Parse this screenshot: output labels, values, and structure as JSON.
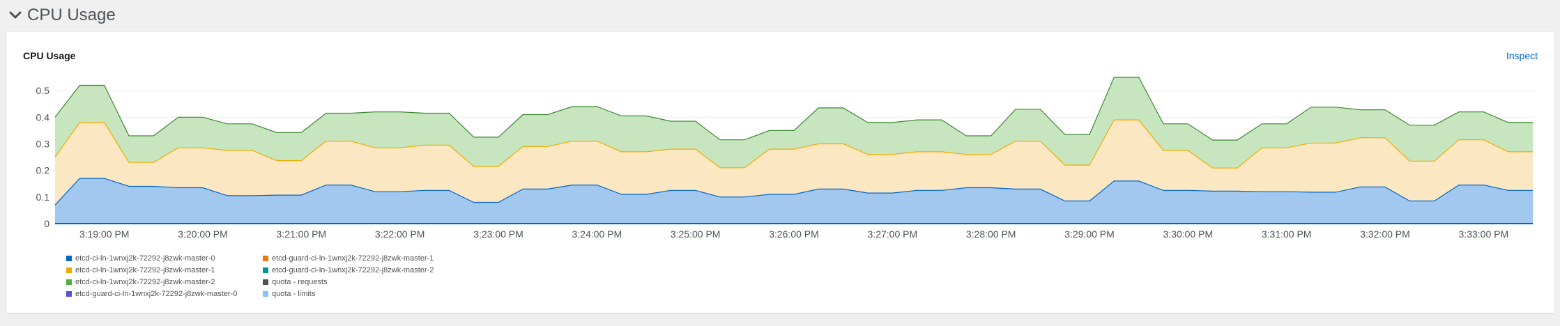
{
  "section": {
    "title": "CPU Usage",
    "chevron_icon": "chevron-down-icon"
  },
  "card": {
    "title": "CPU Usage",
    "inspect_label": "Inspect"
  },
  "colors": {
    "blue_fill": "#a2c8ef",
    "blue_line": "#0066cc",
    "yellow_fill": "#fbe7c2",
    "yellow_line": "#f0ab00",
    "green_fill": "#c7e6bf",
    "green_line": "#3e8635",
    "link": "#0066cc"
  },
  "legend": [
    {
      "label": "etcd-ci-ln-1wnxj2k-72292-j8zwk-master-0",
      "color": "#0066cc"
    },
    {
      "label": "etcd-guard-ci-ln-1wnxj2k-72292-j8zwk-master-1",
      "color": "#ec7a08"
    },
    {
      "label": "etcd-ci-ln-1wnxj2k-72292-j8zwk-master-1",
      "color": "#f0ab00"
    },
    {
      "label": "etcd-guard-ci-ln-1wnxj2k-72292-j8zwk-master-2",
      "color": "#009596"
    },
    {
      "label": "etcd-ci-ln-1wnxj2k-72292-j8zwk-master-2",
      "color": "#4cb140"
    },
    {
      "label": "quota - requests",
      "color": "#4f5255"
    },
    {
      "label": "etcd-guard-ci-ln-1wnxj2k-72292-j8zwk-master-0",
      "color": "#5752d1"
    },
    {
      "label": "quota - limits",
      "color": "#8bc1f7"
    }
  ],
  "chart_data": {
    "type": "area",
    "stacked": true,
    "ylim": [
      0,
      0.55
    ],
    "yticks": [
      "0",
      "0.1",
      "0.2",
      "0.3",
      "0.4",
      "0.5"
    ],
    "grid": true,
    "legend_position": "bottom",
    "xtick_labels": [
      "3:19:00 PM",
      "3:20:00 PM",
      "3:21:00 PM",
      "3:22:00 PM",
      "3:23:00 PM",
      "3:24:00 PM",
      "3:25:00 PM",
      "3:26:00 PM",
      "3:27:00 PM",
      "3:28:00 PM",
      "3:29:00 PM",
      "3:30:00 PM",
      "3:31:00 PM",
      "3:32:00 PM",
      "3:33:00 PM"
    ],
    "x_start": "3:18:30 PM",
    "x_step_seconds": 15,
    "series": [
      {
        "name": "etcd-ci-ln-1wnxj2k-72292-j8zwk-master-0",
        "color": "#0066cc",
        "values": [
          0.07,
          0.17,
          0.17,
          0.14,
          0.14,
          0.135,
          0.135,
          0.105,
          0.105,
          0.107,
          0.107,
          0.145,
          0.145,
          0.12,
          0.12,
          0.125,
          0.125,
          0.08,
          0.08,
          0.13,
          0.13,
          0.145,
          0.145,
          0.11,
          0.11,
          0.125,
          0.125,
          0.1,
          0.1,
          0.11,
          0.11,
          0.13,
          0.13,
          0.115,
          0.115,
          0.125,
          0.125,
          0.135,
          0.135,
          0.13,
          0.13,
          0.085,
          0.085,
          0.16,
          0.16,
          0.125,
          0.125,
          0.122,
          0.122,
          0.12,
          0.12,
          0.118,
          0.118,
          0.138,
          0.138,
          0.085,
          0.085,
          0.145,
          0.145,
          0.125,
          0.125
        ]
      },
      {
        "name": "etcd-ci-ln-1wnxj2k-72292-j8zwk-master-1",
        "color": "#f0ab00",
        "values": [
          0.18,
          0.21,
          0.21,
          0.09,
          0.09,
          0.15,
          0.15,
          0.17,
          0.17,
          0.13,
          0.13,
          0.165,
          0.165,
          0.165,
          0.165,
          0.17,
          0.17,
          0.135,
          0.135,
          0.16,
          0.16,
          0.165,
          0.165,
          0.16,
          0.16,
          0.155,
          0.155,
          0.11,
          0.11,
          0.17,
          0.17,
          0.17,
          0.17,
          0.145,
          0.145,
          0.145,
          0.145,
          0.125,
          0.125,
          0.18,
          0.18,
          0.135,
          0.135,
          0.23,
          0.23,
          0.15,
          0.15,
          0.087,
          0.087,
          0.165,
          0.165,
          0.185,
          0.185,
          0.185,
          0.185,
          0.15,
          0.15,
          0.17,
          0.17,
          0.145,
          0.145
        ]
      },
      {
        "name": "etcd-ci-ln-1wnxj2k-72292-j8zwk-master-2",
        "color": "#4cb140",
        "values": [
          0.15,
          0.14,
          0.14,
          0.1,
          0.1,
          0.115,
          0.115,
          0.1,
          0.1,
          0.105,
          0.105,
          0.105,
          0.105,
          0.135,
          0.135,
          0.12,
          0.12,
          0.11,
          0.11,
          0.12,
          0.12,
          0.13,
          0.13,
          0.135,
          0.135,
          0.105,
          0.105,
          0.105,
          0.105,
          0.07,
          0.07,
          0.135,
          0.135,
          0.12,
          0.12,
          0.12,
          0.12,
          0.07,
          0.07,
          0.12,
          0.12,
          0.115,
          0.115,
          0.16,
          0.16,
          0.1,
          0.1,
          0.105,
          0.105,
          0.09,
          0.09,
          0.135,
          0.135,
          0.105,
          0.105,
          0.135,
          0.135,
          0.105,
          0.105,
          0.11,
          0.11
        ]
      }
    ]
  }
}
